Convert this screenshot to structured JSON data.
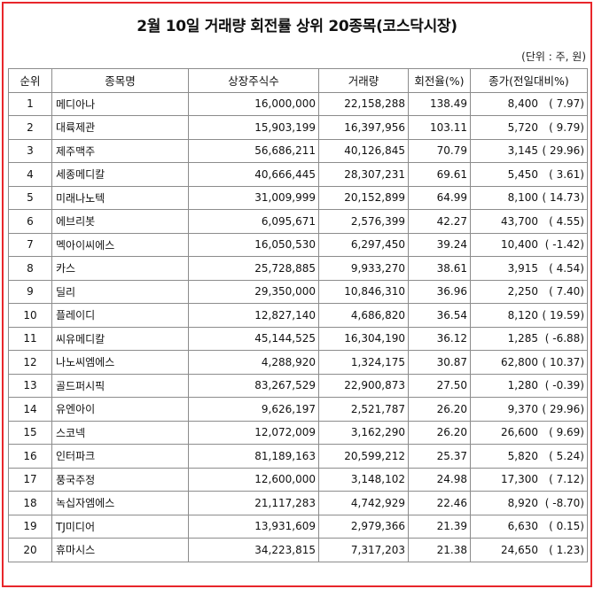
{
  "title": "2월 10일 거래량 회전률 상위 20종목(코스닥시장)",
  "unit_note": "(단위 : 주, 원)",
  "headers": {
    "rank": "순위",
    "name": "종목명",
    "listed_shares": "상장주식수",
    "volume": "거래량",
    "turnover": "회전율(%)",
    "close": "종가(전일대비%)"
  },
  "rows": [
    {
      "rank": "1",
      "name": "메디아나",
      "listed": "16,000,000",
      "volume": "22,158,288",
      "turnover": "138.49",
      "price": "8,400",
      "change": "( 7.97)"
    },
    {
      "rank": "2",
      "name": "대륙제관",
      "listed": "15,903,199",
      "volume": "16,397,956",
      "turnover": "103.11",
      "price": "5,720",
      "change": "( 9.79)"
    },
    {
      "rank": "3",
      "name": "제주맥주",
      "listed": "56,686,211",
      "volume": "40,126,845",
      "turnover": "70.79",
      "price": "3,145",
      "change": "( 29.96)"
    },
    {
      "rank": "4",
      "name": "세종메디칼",
      "listed": "40,666,445",
      "volume": "28,307,231",
      "turnover": "69.61",
      "price": "5,450",
      "change": "( 3.61)"
    },
    {
      "rank": "5",
      "name": "미래나노텍",
      "listed": "31,009,999",
      "volume": "20,152,899",
      "turnover": "64.99",
      "price": "8,100",
      "change": "( 14.73)"
    },
    {
      "rank": "6",
      "name": "에브리봇",
      "listed": "6,095,671",
      "volume": "2,576,399",
      "turnover": "42.27",
      "price": "43,700",
      "change": "( 4.55)"
    },
    {
      "rank": "7",
      "name": "멕아이씨에스",
      "listed": "16,050,530",
      "volume": "6,297,450",
      "turnover": "39.24",
      "price": "10,400",
      "change": "( -1.42)"
    },
    {
      "rank": "8",
      "name": "카스",
      "listed": "25,728,885",
      "volume": "9,933,270",
      "turnover": "38.61",
      "price": "3,915",
      "change": "( 4.54)"
    },
    {
      "rank": "9",
      "name": "딜리",
      "listed": "29,350,000",
      "volume": "10,846,310",
      "turnover": "36.96",
      "price": "2,250",
      "change": "( 7.40)"
    },
    {
      "rank": "10",
      "name": "플레이디",
      "listed": "12,827,140",
      "volume": "4,686,820",
      "turnover": "36.54",
      "price": "8,120",
      "change": "( 19.59)"
    },
    {
      "rank": "11",
      "name": "씨유메디칼",
      "listed": "45,144,525",
      "volume": "16,304,190",
      "turnover": "36.12",
      "price": "1,285",
      "change": "( -6.88)"
    },
    {
      "rank": "12",
      "name": "나노씨엠에스",
      "listed": "4,288,920",
      "volume": "1,324,175",
      "turnover": "30.87",
      "price": "62,800",
      "change": "( 10.37)"
    },
    {
      "rank": "13",
      "name": "골드퍼시픽",
      "listed": "83,267,529",
      "volume": "22,900,873",
      "turnover": "27.50",
      "price": "1,280",
      "change": "( -0.39)"
    },
    {
      "rank": "14",
      "name": "유엔아이",
      "listed": "9,626,197",
      "volume": "2,521,787",
      "turnover": "26.20",
      "price": "9,370",
      "change": "( 29.96)"
    },
    {
      "rank": "15",
      "name": "스코넥",
      "listed": "12,072,009",
      "volume": "3,162,290",
      "turnover": "26.20",
      "price": "26,600",
      "change": "( 9.69)"
    },
    {
      "rank": "16",
      "name": "인터파크",
      "listed": "81,189,163",
      "volume": "20,599,212",
      "turnover": "25.37",
      "price": "5,820",
      "change": "( 5.24)"
    },
    {
      "rank": "17",
      "name": "풍국주정",
      "listed": "12,600,000",
      "volume": "3,148,102",
      "turnover": "24.98",
      "price": "17,300",
      "change": "( 7.12)"
    },
    {
      "rank": "18",
      "name": "녹십자엠에스",
      "listed": "21,117,283",
      "volume": "4,742,929",
      "turnover": "22.46",
      "price": "8,920",
      "change": "( -8.70)"
    },
    {
      "rank": "19",
      "name": "TJ미디어",
      "listed": "13,931,609",
      "volume": "2,979,366",
      "turnover": "21.39",
      "price": "6,630",
      "change": "( 0.15)"
    },
    {
      "rank": "20",
      "name": "휴마시스",
      "listed": "34,223,815",
      "volume": "7,317,203",
      "turnover": "21.38",
      "price": "24,650",
      "change": "( 1.23)"
    }
  ]
}
